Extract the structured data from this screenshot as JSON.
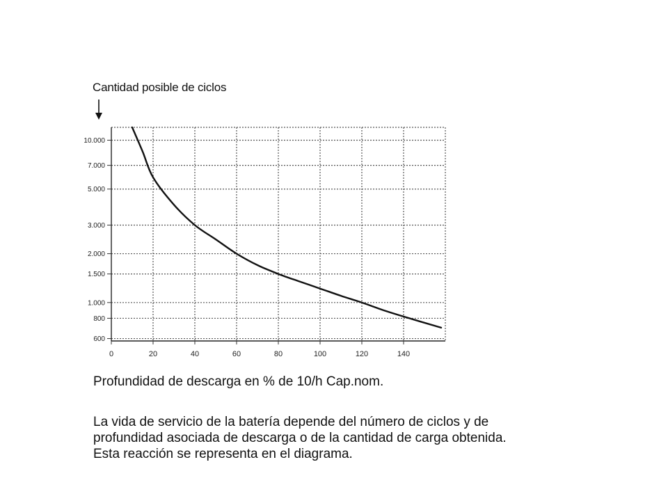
{
  "chart_data": {
    "type": "line",
    "y_scale": "log",
    "grid": true,
    "legend": "none",
    "title": "",
    "ylabel": "Cantidad posible de ciclos",
    "xlabel": "Profundidad de descarga en % de 10/h Cap.nom.",
    "xlim": [
      0,
      160
    ],
    "ylim": [
      580,
      12000
    ],
    "x_ticks": [
      0,
      20,
      40,
      60,
      80,
      100,
      120,
      140
    ],
    "x_tick_labels": [
      "0",
      "20",
      "40",
      "60",
      "80",
      "100",
      "120",
      "140"
    ],
    "y_ticks": [
      600,
      800,
      1000,
      1500,
      2000,
      3000,
      5000,
      7000,
      10000
    ],
    "y_tick_labels": [
      "600",
      "800",
      "1.000",
      "1.500",
      "2.000",
      "3.000",
      "5.000",
      "7.000",
      "10.000"
    ],
    "series": [
      {
        "x": [
          10,
          15,
          20,
          30,
          40,
          50,
          60,
          70,
          80,
          90,
          100,
          110,
          120,
          130,
          140,
          158
        ],
        "y": [
          12000,
          8500,
          5900,
          4000,
          3000,
          2450,
          2000,
          1700,
          1500,
          1350,
          1220,
          1100,
          1000,
          900,
          820,
          700
        ]
      }
    ],
    "line_color": "#111111"
  },
  "text": {
    "description_lines": [
      "La vida de servicio de la batería depende del número de ciclos y de",
      "profundidad asociada de descarga o de la cantidad de carga obtenida.",
      "Esta reacción se representa en el diagrama."
    ]
  }
}
